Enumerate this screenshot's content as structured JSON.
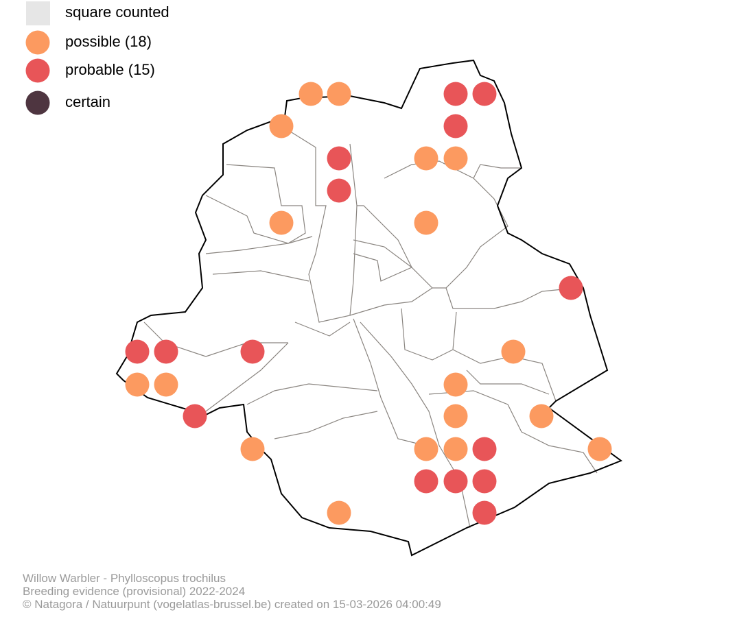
{
  "legend": {
    "items": [
      {
        "label": "square counted",
        "color": "#e6e6e6"
      },
      {
        "label": "possible (18)",
        "color": "#fc9a60"
      },
      {
        "label": "probable (15)",
        "color": "#e85558"
      },
      {
        "label": "certain",
        "color": "#4e3540"
      }
    ]
  },
  "footer": {
    "lines": [
      "Willow Warbler - Phylloscopus trochilus",
      "Breeding evidence (provisional) 2022-2024",
      "© Natagora / Natuurpunt (vogelatlas-brussel.be) created on 15-03-2026 04:00:49"
    ]
  }
}
